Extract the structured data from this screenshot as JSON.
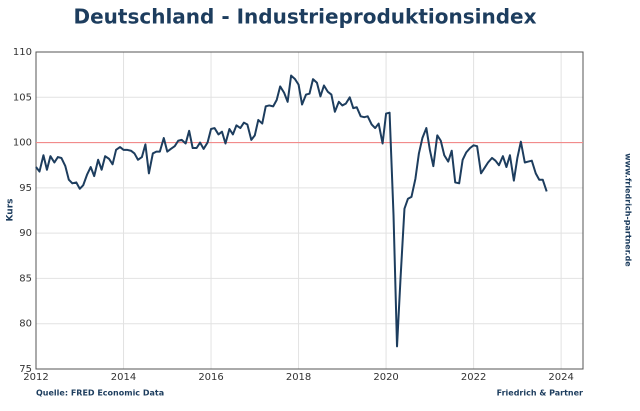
{
  "chart_data": {
    "type": "line",
    "title": "Deutschland - Industrieproduktionsindex",
    "y_label": "Kurs",
    "source": "Quelle: FRED Economic Data",
    "author": "Friedrich & Partner",
    "website": "www.friedrich-partner.de",
    "xlim": [
      2012,
      2024.5
    ],
    "xticks": [
      2012,
      2014,
      2016,
      2018,
      2020,
      2022,
      2024
    ],
    "ylim": [
      75,
      110
    ],
    "yticks": [
      75,
      80,
      85,
      90,
      95,
      100,
      105,
      110
    ],
    "grid": true,
    "reference_line": {
      "value": 100,
      "color": "#f28b8b"
    },
    "x": [
      2012,
      2012.08,
      2012.17,
      2012.25,
      2012.33,
      2012.42,
      2012.5,
      2012.58,
      2012.67,
      2012.75,
      2012.83,
      2012.92,
      2013,
      2013.08,
      2013.17,
      2013.25,
      2013.33,
      2013.42,
      2013.5,
      2013.58,
      2013.67,
      2013.75,
      2013.83,
      2013.92,
      2014,
      2014.08,
      2014.17,
      2014.25,
      2014.33,
      2014.42,
      2014.5,
      2014.58,
      2014.67,
      2014.75,
      2014.83,
      2014.92,
      2015,
      2015.08,
      2015.17,
      2015.25,
      2015.33,
      2015.42,
      2015.5,
      2015.58,
      2015.67,
      2015.75,
      2015.83,
      2015.92,
      2016,
      2016.08,
      2016.17,
      2016.25,
      2016.33,
      2016.42,
      2016.5,
      2016.58,
      2016.67,
      2016.75,
      2016.83,
      2016.92,
      2017,
      2017.08,
      2017.17,
      2017.25,
      2017.33,
      2017.42,
      2017.5,
      2017.58,
      2017.67,
      2017.75,
      2017.83,
      2017.92,
      2018,
      2018.08,
      2018.17,
      2018.25,
      2018.33,
      2018.42,
      2018.5,
      2018.58,
      2018.67,
      2018.75,
      2018.83,
      2018.92,
      2019,
      2019.08,
      2019.17,
      2019.25,
      2019.33,
      2019.42,
      2019.5,
      2019.58,
      2019.67,
      2019.75,
      2019.83,
      2019.92,
      2020,
      2020.08,
      2020.17,
      2020.25,
      2020.33,
      2020.42,
      2020.5,
      2020.58,
      2020.67,
      2020.75,
      2020.83,
      2020.92,
      2021,
      2021.08,
      2021.17,
      2021.25,
      2021.33,
      2021.42,
      2021.5,
      2021.58,
      2021.67,
      2021.75,
      2021.83,
      2021.92,
      2022,
      2022.08,
      2022.17,
      2022.25,
      2022.33,
      2022.42,
      2022.5,
      2022.58,
      2022.67,
      2022.75,
      2022.83,
      2022.92,
      2023,
      2023.08,
      2023.17,
      2023.25,
      2023.33,
      2023.42,
      2023.5,
      2023.58,
      2023.67
    ],
    "series": [
      {
        "color": "#1d3d5e",
        "values": [
          97.3,
          96.8,
          98.6,
          97.0,
          98.5,
          97.8,
          98.4,
          98.3,
          97.4,
          95.9,
          95.5,
          95.6,
          94.9,
          95.3,
          96.5,
          97.3,
          96.3,
          98.1,
          97.0,
          98.5,
          98.2,
          97.6,
          99.2,
          99.5,
          99.2,
          99.2,
          99.1,
          98.8,
          98.1,
          98.4,
          99.8,
          96.6,
          98.8,
          99.0,
          99.0,
          100.5,
          99.0,
          99.3,
          99.6,
          100.2,
          100.3,
          99.9,
          101.3,
          99.4,
          99.4,
          100.0,
          99.3,
          100.0,
          101.5,
          101.6,
          100.9,
          101.2,
          99.9,
          101.5,
          100.9,
          101.9,
          101.6,
          102.2,
          102.0,
          100.3,
          100.8,
          102.5,
          102.1,
          104.0,
          104.1,
          104.0,
          104.7,
          106.2,
          105.5,
          104.5,
          107.4,
          107.0,
          106.4,
          104.2,
          105.3,
          105.4,
          107.0,
          106.6,
          105.1,
          106.3,
          105.6,
          105.3,
          103.4,
          104.5,
          104.1,
          104.3,
          105.0,
          103.8,
          103.9,
          102.9,
          102.8,
          102.9,
          102.0,
          101.6,
          102.1,
          99.9,
          103.2,
          103.3,
          92.0,
          77.5,
          85.0,
          92.7,
          93.8,
          94.0,
          96.0,
          98.8,
          100.5,
          101.6,
          99.2,
          97.4,
          100.8,
          100.2,
          98.6,
          97.9,
          99.1,
          95.6,
          95.5,
          98.1,
          98.9,
          99.4,
          99.7,
          99.6,
          96.6,
          97.2,
          97.8,
          98.3,
          98.0,
          97.5,
          98.5,
          97.3,
          98.6,
          95.8,
          98.3,
          100.1,
          97.8,
          97.9,
          98.0,
          96.6,
          95.9,
          95.9,
          94.6
        ]
      }
    ]
  }
}
